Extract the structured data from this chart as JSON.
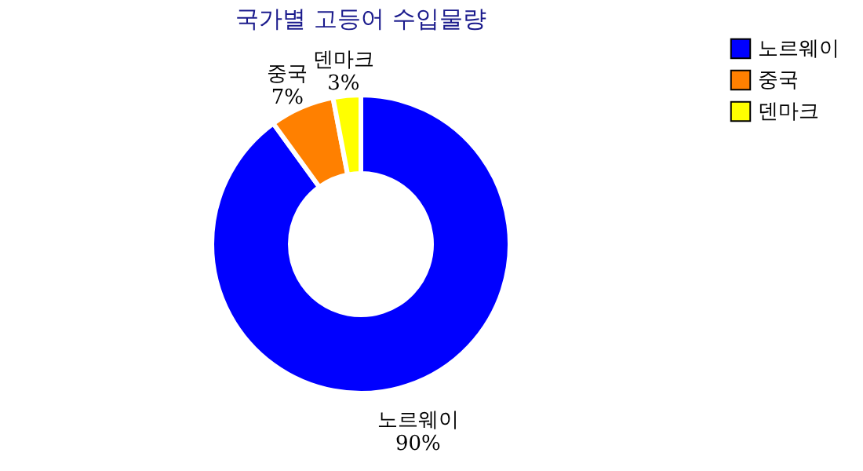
{
  "chart_data": {
    "type": "donut",
    "title": "국가별 고등어 수입물량",
    "categories": [
      "노르웨이",
      "중국",
      "덴마크"
    ],
    "values": [
      90,
      7,
      3
    ],
    "colors": [
      "#0000ff",
      "#ff8000",
      "#ffff00"
    ],
    "value_labels": [
      "90%",
      "7%",
      "3%"
    ],
    "legend": "right"
  }
}
